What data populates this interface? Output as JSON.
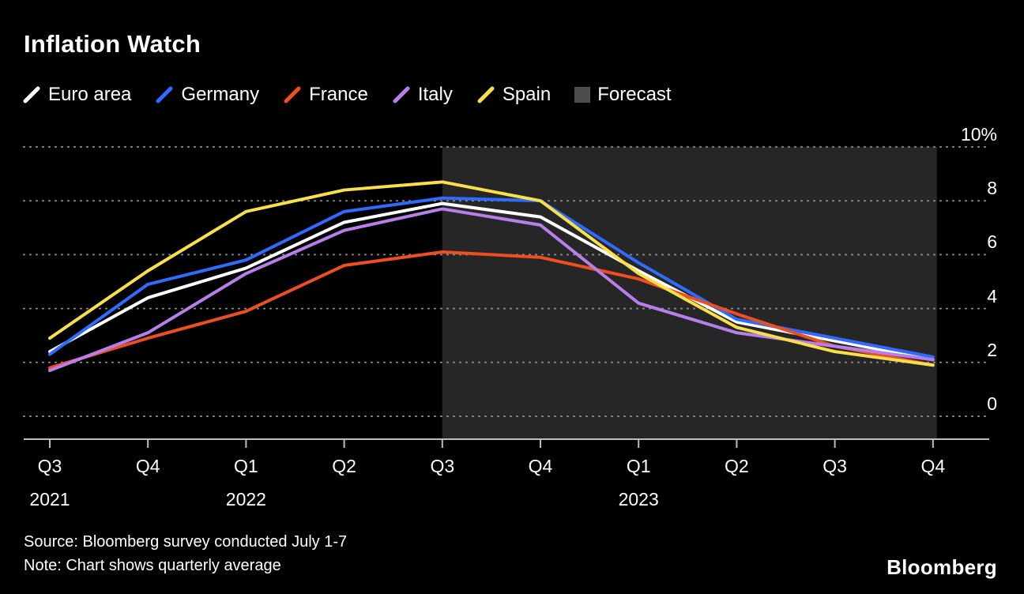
{
  "title": "Inflation Watch",
  "legend": {
    "items": [
      {
        "label": "Euro area",
        "color": "#ffffff",
        "swatch": "line"
      },
      {
        "label": "Germany",
        "color": "#2f6bff",
        "swatch": "line"
      },
      {
        "label": "France",
        "color": "#ef4e23",
        "swatch": "line"
      },
      {
        "label": "Italy",
        "color": "#b77fea",
        "swatch": "line"
      },
      {
        "label": "Spain",
        "color": "#f9e04a",
        "swatch": "line"
      },
      {
        "label": "Forecast",
        "color": "#4d4d4d",
        "swatch": "square"
      }
    ]
  },
  "axes": {
    "y": {
      "labels": [
        "10%",
        "8",
        "6",
        "4",
        "2",
        "0"
      ],
      "ticks": [
        10,
        8,
        6,
        4,
        2,
        0
      ]
    },
    "x": {
      "quarters": [
        "Q3",
        "Q4",
        "Q1",
        "Q2",
        "Q3",
        "Q4",
        "Q1",
        "Q2",
        "Q3",
        "Q4"
      ],
      "years": [
        {
          "label": "2021",
          "index": 0
        },
        {
          "label": "2022",
          "index": 2
        },
        {
          "label": "2023",
          "index": 6
        }
      ]
    }
  },
  "chart_data": {
    "type": "line",
    "title": "Inflation Watch",
    "categories": [
      "Q3 2021",
      "Q4 2021",
      "Q1 2022",
      "Q2 2022",
      "Q3 2022",
      "Q4 2022",
      "Q1 2023",
      "Q2 2023",
      "Q3 2023",
      "Q4 2023"
    ],
    "series": [
      {
        "name": "Euro area",
        "color": "#ffffff",
        "values": [
          2.4,
          4.4,
          5.5,
          7.2,
          7.9,
          7.4,
          5.4,
          3.5,
          2.8,
          2.1
        ]
      },
      {
        "name": "Germany",
        "color": "#2f6bff",
        "values": [
          2.3,
          4.9,
          5.8,
          7.6,
          8.1,
          8.0,
          5.7,
          3.6,
          2.9,
          2.2
        ]
      },
      {
        "name": "France",
        "color": "#ef4e23",
        "values": [
          1.8,
          2.9,
          3.9,
          5.6,
          6.1,
          5.9,
          5.1,
          3.8,
          2.6,
          1.9
        ]
      },
      {
        "name": "Italy",
        "color": "#b77fea",
        "values": [
          1.7,
          3.1,
          5.3,
          6.9,
          7.7,
          7.1,
          4.2,
          3.1,
          2.6,
          2.1
        ]
      },
      {
        "name": "Spain",
        "color": "#f9e04a",
        "values": [
          2.9,
          5.4,
          7.6,
          8.4,
          8.7,
          8.0,
          5.3,
          3.3,
          2.4,
          1.9
        ]
      }
    ],
    "ylim": [
      0,
      10
    ],
    "y_unit": "%",
    "grid": "dotted horizontal",
    "legend_position": "top",
    "forecast": {
      "label": "Forecast",
      "start_category": "Q3 2022",
      "start_index": 4,
      "region_color": "rgba(255,255,255,0.15)"
    }
  },
  "footer": {
    "source": "Source: Bloomberg survey conducted July 1-7",
    "note": "Note: Chart shows quarterly average",
    "brand": "Bloomberg"
  }
}
